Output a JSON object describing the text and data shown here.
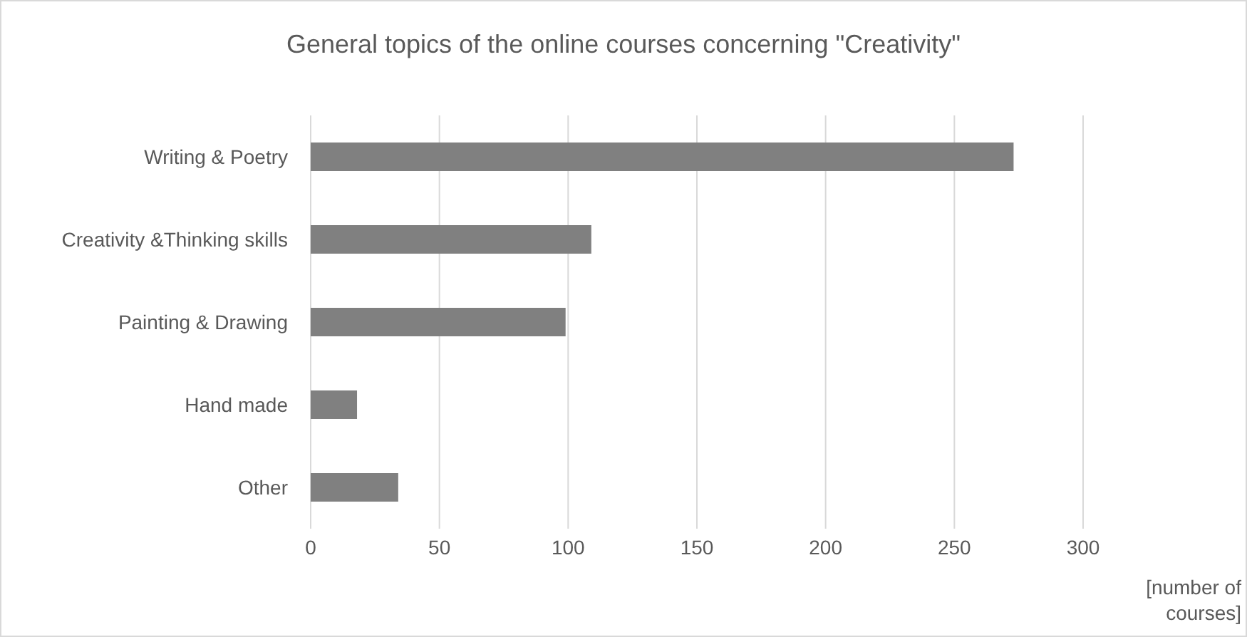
{
  "chart_data": {
    "type": "bar",
    "orientation": "horizontal",
    "title": "General topics of the online courses concerning \"Creativity\"",
    "xlabel": "[number of courses]",
    "categories": [
      "Writing & Poetry",
      "Creativity &Thinking skills",
      "Painting & Drawing",
      "Hand made",
      "Other"
    ],
    "values": [
      273,
      109,
      99,
      18,
      34
    ],
    "color": "#808080",
    "xlim": [
      0,
      300
    ],
    "xticks": [
      0,
      50,
      100,
      150,
      200,
      250,
      300
    ],
    "grid": "x"
  }
}
